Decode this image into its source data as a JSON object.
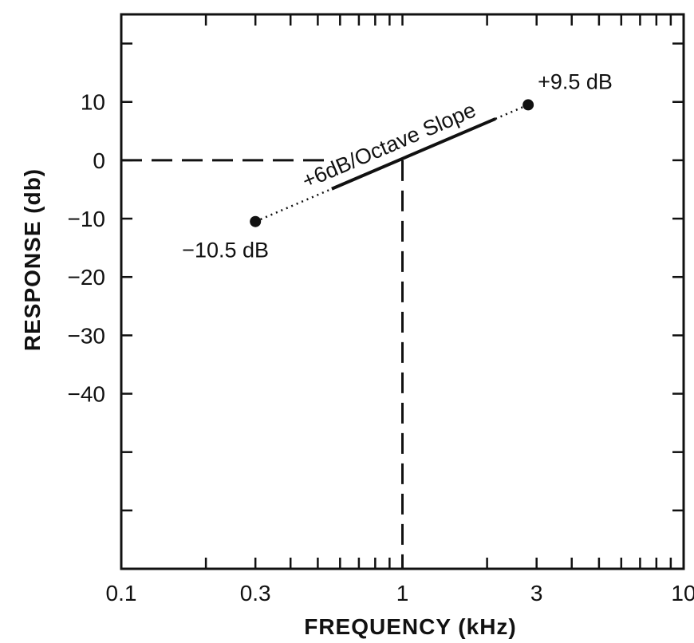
{
  "chart_data": {
    "type": "line",
    "xlabel": "FREQUENCY (kHz)",
    "ylabel": "RESPONSE (db)",
    "x_scale": "log",
    "xlim": [
      0.1,
      10
    ],
    "ylim": [
      -70,
      25
    ],
    "x_ticks": [
      0.1,
      0.3,
      1,
      3,
      10
    ],
    "x_tick_labels": [
      "0.1",
      "0.3",
      "1",
      "3",
      "10"
    ],
    "y_ticks": [
      10,
      0,
      -10,
      -20,
      -30,
      -40
    ],
    "y_tick_labels": [
      "10",
      "0",
      "-10",
      "-20",
      "-30",
      "-40"
    ],
    "y_minor_ticks": [
      20,
      10,
      0,
      -10,
      -20,
      -30,
      -40,
      -50,
      -60
    ],
    "x_minor_ticks": [
      0.2,
      0.3,
      0.4,
      0.5,
      0.6,
      0.7,
      0.8,
      0.9,
      1,
      2,
      3,
      4,
      5,
      6,
      7,
      8,
      9
    ],
    "grid": false,
    "points": [
      {
        "x": 0.3,
        "y": -10.5,
        "label": "−10.5 dB"
      },
      {
        "x": 2.8,
        "y": 9.5,
        "label": "+9.5 dB"
      }
    ],
    "slope_label": "+6dB/Octave Slope",
    "reference_lines": [
      {
        "axis": "y",
        "value": 0,
        "from_x": 0.1,
        "to_x": 0.55,
        "style": "dashed"
      },
      {
        "axis": "x",
        "value": 1,
        "from_y": -70,
        "to_y": 0,
        "style": "dashed"
      }
    ]
  }
}
